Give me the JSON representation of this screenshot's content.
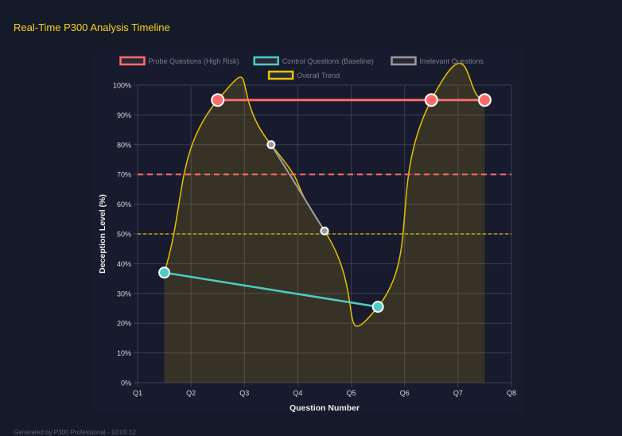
{
  "title": "Real-Time P300 Analysis Timeline",
  "footer": "Generated by P300 Professional - 10:05:12",
  "chart_data": {
    "type": "line",
    "xlabel": "Question Number",
    "ylabel": "Deception Level (%)",
    "x_tick_labels": [
      "Q1",
      "Q2",
      "Q3",
      "Q4",
      "Q5",
      "Q6",
      "Q7",
      "Q8"
    ],
    "ylim": [
      0,
      100
    ],
    "y_ticks": [
      0,
      10,
      20,
      30,
      40,
      50,
      60,
      70,
      80,
      90,
      100
    ],
    "y_tick_suffix": "%",
    "grid": true,
    "legend_position": "top",
    "series": [
      {
        "name": "Probe Questions (High Risk)",
        "color": "#ff6b6b",
        "values": [
          null,
          95,
          null,
          null,
          null,
          95,
          95
        ]
      },
      {
        "name": "Control Questions (Baseline)",
        "color": "#4ecdc4",
        "values": [
          37,
          null,
          null,
          null,
          25.5,
          null,
          null
        ]
      },
      {
        "name": "Irrelevant Questions",
        "color": "#9a9aa2",
        "values": [
          null,
          null,
          80,
          51,
          null,
          null,
          null
        ]
      },
      {
        "name": "Overall Trend",
        "color": "#e6c200",
        "values": [
          37,
          95,
          80,
          51,
          25.5,
          95,
          95
        ],
        "fill": true
      }
    ],
    "thresholds": [
      {
        "value": 70,
        "color": "#ff6b6b",
        "style": "dashed"
      },
      {
        "value": 50,
        "color": "#e6c200",
        "style": "dashed"
      }
    ]
  }
}
